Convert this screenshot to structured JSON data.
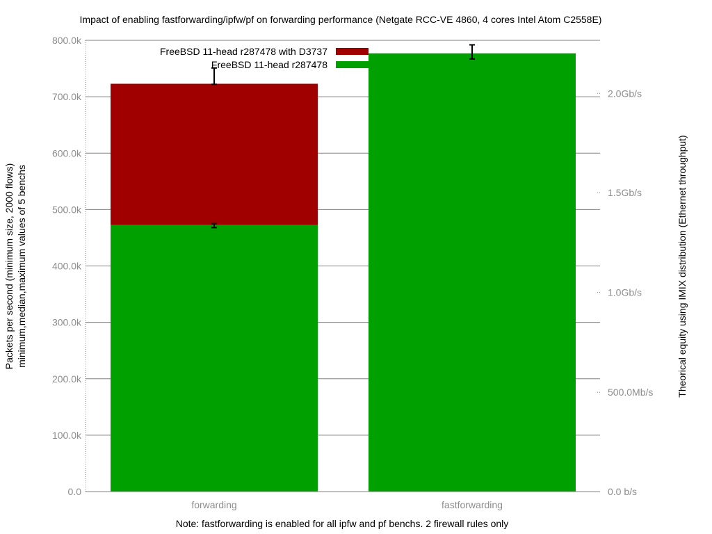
{
  "chart_data": {
    "type": "bar",
    "title": "Impact of enabling fastforwarding/ipfw/pf on forwarding performance (Netgate RCC-VE 4860, 4 cores Intel Atom C2558E)",
    "ylabel_line1": "Packets per second (minimum size, 2000 flows)",
    "ylabel_line2": "minimum,median,maximum values of 5 benchs",
    "y2label": "Theorical equity using IMIX distribution (Ethernet throughput)",
    "xlabel": "Note: fastforwarding is enabled for all ipfw and pf benchs. 2 firewall rules only",
    "categories": [
      "forwarding",
      "fastforwarding"
    ],
    "ylim": [
      0,
      800000
    ],
    "yticks": [
      {
        "value": 0,
        "label": "0.0"
      },
      {
        "value": 100000,
        "label": "100.0k"
      },
      {
        "value": 200000,
        "label": "200.0k"
      },
      {
        "value": 300000,
        "label": "300.0k"
      },
      {
        "value": 400000,
        "label": "400.0k"
      },
      {
        "value": 500000,
        "label": "500.0k"
      },
      {
        "value": 600000,
        "label": "600.0k"
      },
      {
        "value": 700000,
        "label": "700.0k"
      },
      {
        "value": 800000,
        "label": "800.0k"
      }
    ],
    "y2ticks": [
      {
        "value": 0,
        "label": "0.0 b/s"
      },
      {
        "value": 176000,
        "label": "500.0Mb/s"
      },
      {
        "value": 353000,
        "label": "1.0Gb/s"
      },
      {
        "value": 530000,
        "label": "1.5Gb/s"
      },
      {
        "value": 706000,
        "label": "2.0Gb/s"
      }
    ],
    "series": [
      {
        "name": "FreeBSD 11-head r287478 with D3737",
        "color": "#a00000",
        "values": [
          723000,
          null
        ],
        "err_min": [
          722000,
          null
        ],
        "err_max": [
          751000,
          null
        ]
      },
      {
        "name": "FreeBSD 11-head r287478",
        "color": "#00a000",
        "values": [
          473000,
          777000
        ],
        "err_min": [
          468000,
          767000
        ],
        "err_max": [
          475000,
          792000
        ]
      }
    ],
    "grid": true,
    "legend_position": "top-center"
  }
}
